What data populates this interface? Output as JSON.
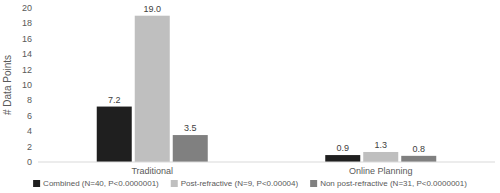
{
  "chart_data": {
    "type": "bar",
    "categories": [
      "Traditional",
      "Online Planning"
    ],
    "series": [
      {
        "name": "Combined (N=40, P<0.0000001)",
        "color": "#1f1f1f",
        "values": [
          7.2,
          0.9
        ]
      },
      {
        "name": "Post-refractive (N=9, P<0.00004)",
        "color": "#bfbfbf",
        "values": [
          19.0,
          1.3
        ],
        "value_labels": [
          "19.0",
          "1.3"
        ]
      },
      {
        "name": "Non post-refractive (N=31, P<0.0000001)",
        "color": "#808080",
        "values": [
          3.5,
          0.8
        ]
      }
    ],
    "y_label": "# Data Points",
    "ylim": [
      0,
      20
    ],
    "yticks": [
      0,
      2,
      4,
      6,
      8,
      10,
      12,
      14,
      16,
      18,
      20
    ],
    "grid": false,
    "legend": "bottom",
    "data_labels": true
  }
}
